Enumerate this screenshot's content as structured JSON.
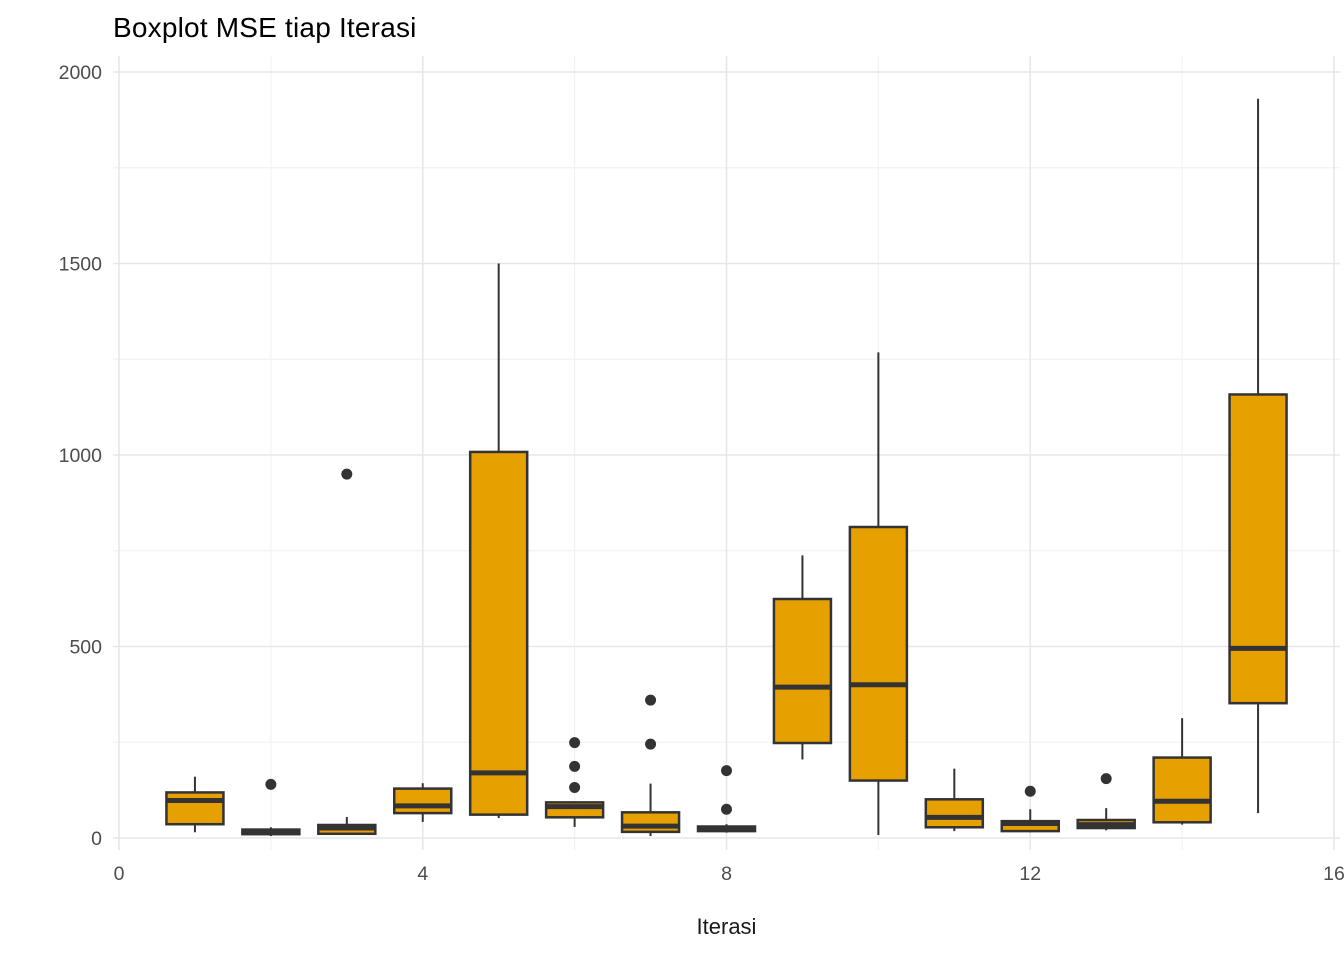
{
  "chart_data": {
    "type": "boxplot",
    "title": "Boxplot MSE tiap Iterasi",
    "xlabel": "Iterasi",
    "ylabel": "",
    "xlim": [
      0,
      16
    ],
    "ylim": [
      0,
      2000
    ],
    "x_major_ticks": [
      0,
      4,
      8,
      12,
      16
    ],
    "x_minor_gridlines": [
      2,
      6,
      10,
      14
    ],
    "y_major_ticks": [
      0,
      500,
      1000,
      1500,
      2000
    ],
    "y_minor_gridlines": [
      250,
      750,
      1250,
      1750
    ],
    "grid": true,
    "legend": "none",
    "colors": {
      "box_fill": "#E6A000",
      "box_stroke": "#333333",
      "outlier": "#333333",
      "grid_major": "#E7E7E7",
      "grid_minor": "#F3F3F3",
      "tick_text": "#4D4D4D",
      "background": "#FFFFFF"
    },
    "series": [
      {
        "x": 1,
        "min": 15,
        "q1": 36,
        "median": 98,
        "q3": 119,
        "max": 160,
        "outliers": []
      },
      {
        "x": 2,
        "min": 5,
        "q1": 10,
        "median": 16,
        "q3": 22,
        "max": 28,
        "outliers": [
          140
        ]
      },
      {
        "x": 3,
        "min": 8,
        "q1": 11,
        "median": 26,
        "q3": 34,
        "max": 55,
        "outliers": [
          950
        ]
      },
      {
        "x": 4,
        "min": 42,
        "q1": 65,
        "median": 84,
        "q3": 129,
        "max": 143,
        "outliers": []
      },
      {
        "x": 5,
        "min": 52,
        "q1": 61,
        "median": 170,
        "q3": 1008,
        "max": 1500,
        "outliers": []
      },
      {
        "x": 6,
        "min": 29,
        "q1": 54,
        "median": 82,
        "q3": 93,
        "max": 93,
        "outliers": [
          132,
          187,
          249
        ]
      },
      {
        "x": 7,
        "min": 5,
        "q1": 16,
        "median": 31,
        "q3": 67,
        "max": 142,
        "outliers": [
          245,
          360
        ]
      },
      {
        "x": 8,
        "min": 14,
        "q1": 18,
        "median": 24,
        "q3": 30,
        "max": 36,
        "outliers": [
          75,
          176
        ]
      },
      {
        "x": 9,
        "min": 205,
        "q1": 248,
        "median": 394,
        "q3": 624,
        "max": 738,
        "outliers": []
      },
      {
        "x": 10,
        "min": 8,
        "q1": 150,
        "median": 400,
        "q3": 812,
        "max": 1268,
        "outliers": []
      },
      {
        "x": 11,
        "min": 18,
        "q1": 28,
        "median": 54,
        "q3": 101,
        "max": 181,
        "outliers": []
      },
      {
        "x": 12,
        "min": 15,
        "q1": 18,
        "median": 38,
        "q3": 44,
        "max": 75,
        "outliers": [
          122
        ]
      },
      {
        "x": 13,
        "min": 20,
        "q1": 26,
        "median": 35,
        "q3": 47,
        "max": 78,
        "outliers": [
          155
        ]
      },
      {
        "x": 14,
        "min": 35,
        "q1": 41,
        "median": 96,
        "q3": 210,
        "max": 313,
        "outliers": []
      },
      {
        "x": 15,
        "min": 65,
        "q1": 352,
        "median": 495,
        "q3": 1158,
        "max": 1930,
        "outliers": []
      }
    ]
  }
}
